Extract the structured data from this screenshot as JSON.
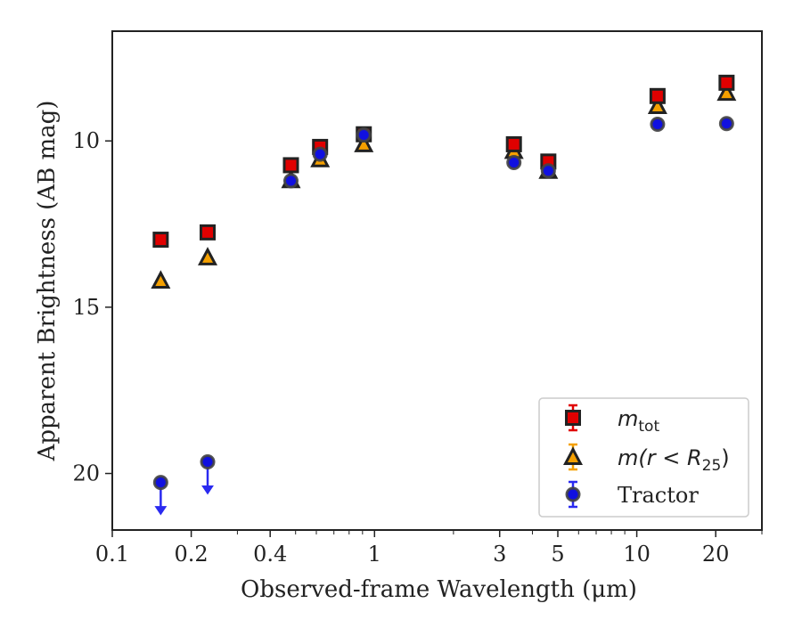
{
  "chart_data": {
    "type": "scatter",
    "xlabel": "Observed-frame Wavelength (μm)",
    "ylabel": "Apparent Brightness (AB mag)",
    "xscale": "log",
    "xlim": [
      0.1,
      30
    ],
    "ylim": [
      21.7,
      6.7
    ],
    "y_inverted": true,
    "x_ticks": [
      {
        "value": 0.1,
        "label": "0.1"
      },
      {
        "value": 0.2,
        "label": "0.2"
      },
      {
        "value": 0.4,
        "label": "0.4"
      },
      {
        "value": 1,
        "label": "1"
      },
      {
        "value": 3,
        "label": "3"
      },
      {
        "value": 5,
        "label": "5"
      },
      {
        "value": 10,
        "label": "10"
      },
      {
        "value": 20,
        "label": "20"
      }
    ],
    "y_ticks": [
      {
        "value": 10,
        "label": "10"
      },
      {
        "value": 15,
        "label": "15"
      },
      {
        "value": 20,
        "label": "20"
      }
    ],
    "grid": false,
    "legend_position": "bottom-right",
    "series": [
      {
        "name": "m_tot",
        "marker": "square",
        "color": "#e00000",
        "edge": "#222222",
        "points": [
          {
            "x": 0.153,
            "y": 12.97
          },
          {
            "x": 0.231,
            "y": 12.75
          },
          {
            "x": 0.48,
            "y": 10.73
          },
          {
            "x": 0.62,
            "y": 10.18
          },
          {
            "x": 0.91,
            "y": 9.8
          },
          {
            "x": 3.4,
            "y": 10.1
          },
          {
            "x": 4.6,
            "y": 10.62
          },
          {
            "x": 12.0,
            "y": 8.65
          },
          {
            "x": 22.0,
            "y": 8.25
          }
        ]
      },
      {
        "name": "m(r<R25)",
        "marker": "triangle",
        "color": "#f5a000",
        "edge": "#222222",
        "points": [
          {
            "x": 0.153,
            "y": 14.2
          },
          {
            "x": 0.231,
            "y": 13.5
          },
          {
            "x": 0.48,
            "y": 11.18
          },
          {
            "x": 0.62,
            "y": 10.55
          },
          {
            "x": 0.91,
            "y": 10.1
          },
          {
            "x": 3.4,
            "y": 10.3
          },
          {
            "x": 4.6,
            "y": 10.9
          },
          {
            "x": 12.0,
            "y": 8.95
          },
          {
            "x": 22.0,
            "y": 8.55
          }
        ]
      },
      {
        "name": "Tractor",
        "marker": "circle",
        "color": "#1010e0",
        "edge": "#444444",
        "points": [
          {
            "x": 0.153,
            "y": 20.27,
            "upper_limit": true
          },
          {
            "x": 0.231,
            "y": 19.65,
            "upper_limit": true
          },
          {
            "x": 0.48,
            "y": 11.2
          },
          {
            "x": 0.62,
            "y": 10.4
          },
          {
            "x": 0.91,
            "y": 9.82
          },
          {
            "x": 3.4,
            "y": 10.65
          },
          {
            "x": 4.6,
            "y": 10.9
          },
          {
            "x": 12.0,
            "y": 9.5
          },
          {
            "x": 22.0,
            "y": 9.48
          }
        ]
      }
    ],
    "legend": [
      {
        "series": 0,
        "main": "m",
        "sub": "tot",
        "rest": ""
      },
      {
        "series": 1,
        "main": "m(r < R",
        "sub": "25",
        "rest": ")"
      },
      {
        "series": 2,
        "main": "Tractor",
        "sub": "",
        "rest": ""
      }
    ]
  }
}
